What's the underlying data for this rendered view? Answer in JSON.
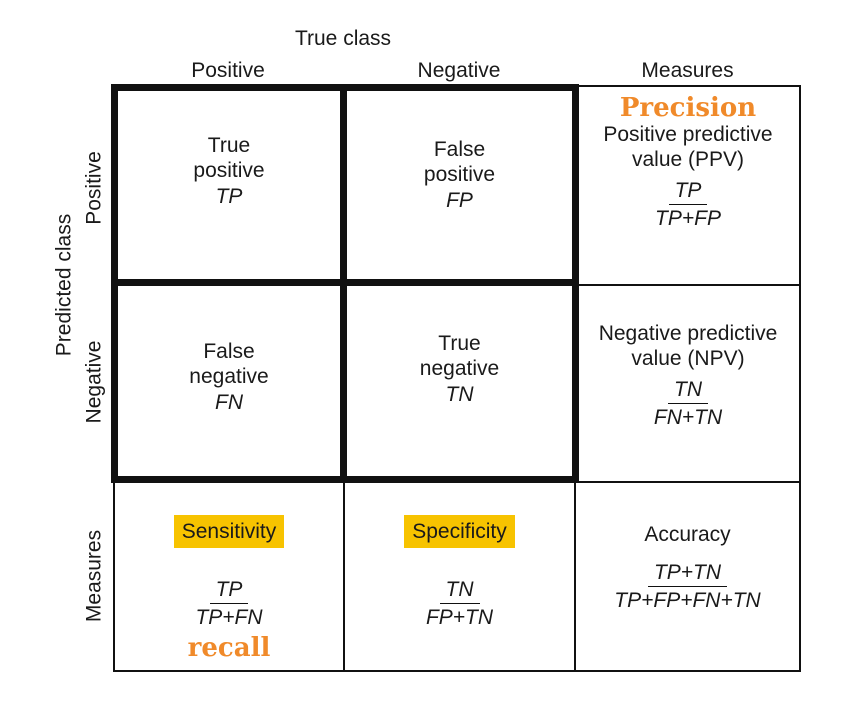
{
  "header": {
    "true_class": "True class",
    "positive": "Positive",
    "negative": "Negative",
    "measures": "Measures"
  },
  "side": {
    "predicted_class": "Predicted class",
    "positive": "Positive",
    "negative": "Negative",
    "measures": "Measures"
  },
  "cells": {
    "tp": {
      "line1": "True",
      "line2": "positive",
      "abbr": "TP"
    },
    "fp": {
      "line1": "False",
      "line2": "positive",
      "abbr": "FP"
    },
    "fn": {
      "line1": "False",
      "line2": "negative",
      "abbr": "FN"
    },
    "tn": {
      "line1": "True",
      "line2": "negative",
      "abbr": "TN"
    }
  },
  "measures": {
    "precision": {
      "annotation": "Precision",
      "line1": "Positive predictive",
      "line2": "value (PPV)",
      "num": "TP",
      "den": "TP+FP"
    },
    "npv": {
      "line1": "Negative predictive",
      "line2": "value (NPV)",
      "num": "TN",
      "den": "FN+TN"
    },
    "sensitivity": {
      "label": "Sensitivity",
      "num": "TP",
      "den": "TP+FN",
      "annotation": "recall"
    },
    "specificity": {
      "label": "Specificity",
      "num": "TN",
      "den": "FP+TN"
    },
    "accuracy": {
      "label": "Accuracy",
      "num": "TP+TN",
      "den": "TP+FP+FN+TN"
    }
  },
  "colors": {
    "highlight": "#f7c300",
    "annotation": "#f08a2a",
    "grid": "#111111"
  }
}
